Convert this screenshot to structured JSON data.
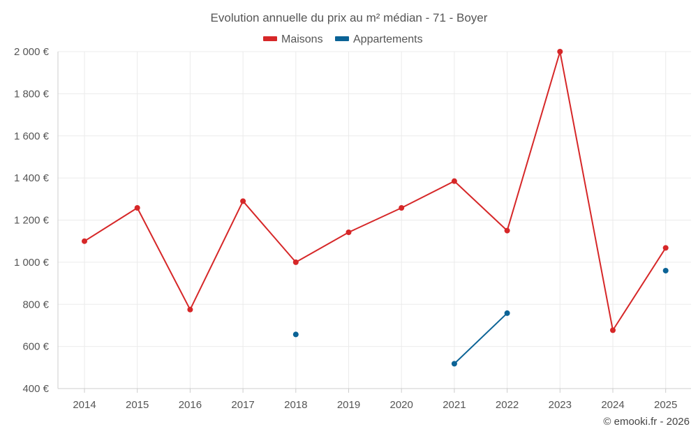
{
  "chart_data": {
    "type": "line",
    "title": "Evolution annuelle du prix au m² médian - 71 - Boyer",
    "xlabel": "",
    "ylabel": "",
    "categories": [
      "2014",
      "2015",
      "2016",
      "2017",
      "2018",
      "2019",
      "2020",
      "2021",
      "2022",
      "2023",
      "2024",
      "2025"
    ],
    "ylim": [
      400,
      2000
    ],
    "yticks": [
      400,
      600,
      800,
      1000,
      1200,
      1400,
      1600,
      1800,
      2000
    ],
    "ytick_labels": [
      "400 €",
      "600 €",
      "800 €",
      "1 000 €",
      "1 200 €",
      "1 400 €",
      "1 600 €",
      "1 800 €",
      "2 000 €"
    ],
    "grid": true,
    "legend_position": "top-center",
    "series": [
      {
        "name": "Maisons",
        "color": "#d62728",
        "values": [
          1100,
          1258,
          775,
          1290,
          1000,
          1142,
          1258,
          1385,
          1150,
          2000,
          677,
          1068
        ]
      },
      {
        "name": "Appartements",
        "color": "#0b6396",
        "values": [
          null,
          null,
          null,
          null,
          657,
          null,
          null,
          518,
          758,
          null,
          null,
          960
        ]
      }
    ]
  },
  "credit": "© emooki.fr - 2026"
}
